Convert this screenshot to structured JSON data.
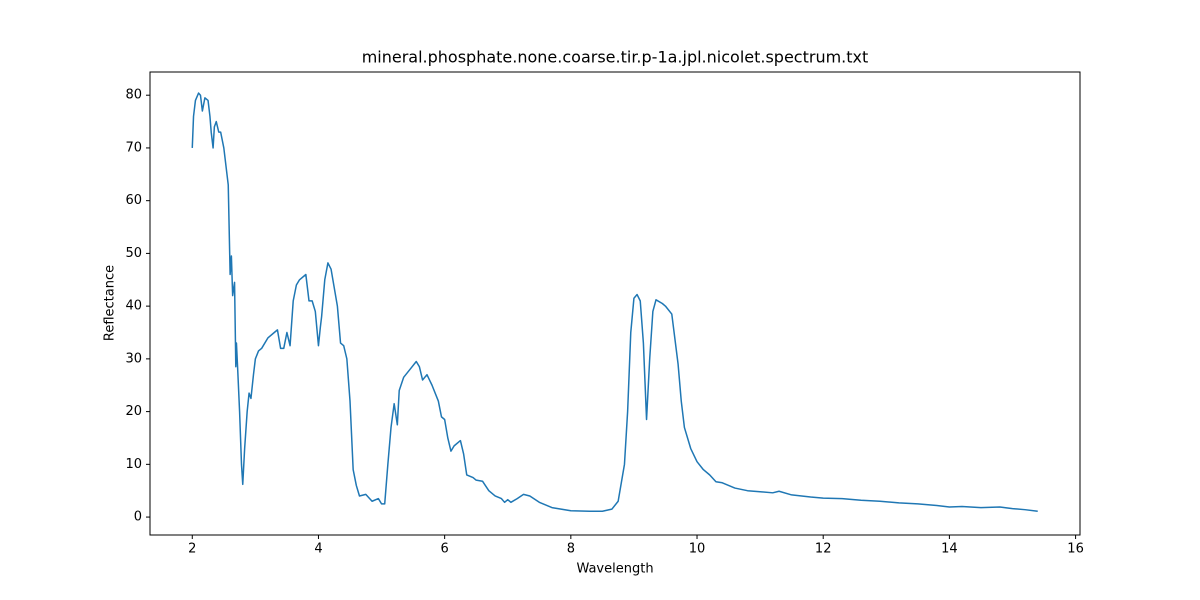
{
  "chart_data": {
    "type": "line",
    "title": "mineral.phosphate.none.coarse.tir.p-1a.jpl.nicolet.spectrum.txt",
    "x_label": "Wavelength",
    "y_label": "Reflectance",
    "xlim": [
      1.33,
      16.07
    ],
    "ylim": [
      -3.4,
      84.4
    ],
    "xticks": [
      2,
      4,
      6,
      8,
      10,
      12,
      14,
      16
    ],
    "yticks": [
      0,
      10,
      20,
      30,
      40,
      50,
      60,
      70,
      80
    ],
    "grid": false,
    "series": [
      {
        "color": "#1f77b4",
        "x": [
          2.0,
          2.02,
          2.05,
          2.1,
          2.13,
          2.16,
          2.2,
          2.25,
          2.28,
          2.3,
          2.33,
          2.35,
          2.38,
          2.42,
          2.45,
          2.5,
          2.55,
          2.57,
          2.6,
          2.62,
          2.64,
          2.67,
          2.69,
          2.7,
          2.72,
          2.75,
          2.78,
          2.8,
          2.83,
          2.87,
          2.9,
          2.93,
          2.97,
          3.0,
          3.05,
          3.1,
          3.2,
          3.3,
          3.35,
          3.4,
          3.45,
          3.5,
          3.55,
          3.6,
          3.65,
          3.7,
          3.8,
          3.85,
          3.9,
          3.95,
          4.0,
          4.03,
          4.05,
          4.1,
          4.15,
          4.2,
          4.3,
          4.35,
          4.4,
          4.45,
          4.5,
          4.55,
          4.6,
          4.65,
          4.75,
          4.85,
          4.95,
          5.0,
          5.05,
          5.1,
          5.15,
          5.2,
          5.25,
          5.28,
          5.35,
          5.45,
          5.55,
          5.6,
          5.65,
          5.72,
          5.8,
          5.9,
          5.95,
          6.0,
          6.05,
          6.1,
          6.15,
          6.25,
          6.3,
          6.35,
          6.45,
          6.5,
          6.6,
          6.7,
          6.8,
          6.9,
          6.95,
          7.0,
          7.05,
          7.15,
          7.25,
          7.35,
          7.5,
          7.7,
          8.0,
          8.3,
          8.5,
          8.65,
          8.75,
          8.85,
          8.9,
          8.95,
          9.0,
          9.05,
          9.1,
          9.15,
          9.2,
          9.25,
          9.3,
          9.35,
          9.45,
          9.5,
          9.6,
          9.7,
          9.75,
          9.8,
          9.9,
          10.0,
          10.1,
          10.2,
          10.3,
          10.4,
          10.6,
          10.8,
          11.0,
          11.2,
          11.3,
          11.5,
          11.8,
          12.0,
          12.3,
          12.6,
          12.9,
          13.2,
          13.5,
          13.8,
          14.0,
          14.2,
          14.5,
          14.8,
          15.0,
          15.2,
          15.4
        ],
        "values": [
          70,
          76,
          79,
          80.4,
          80,
          77,
          79.5,
          79,
          76,
          73,
          70,
          74,
          75,
          73,
          73,
          70,
          65,
          63,
          46,
          49.5,
          42,
          44.5,
          28.5,
          33,
          28,
          20,
          10,
          6.2,
          13,
          20,
          23.5,
          22.5,
          27,
          30,
          31.5,
          32,
          34,
          35,
          35.5,
          32,
          32,
          35,
          32.5,
          41,
          44,
          45,
          46,
          41,
          41,
          39,
          32.5,
          36,
          38,
          45,
          48.2,
          47,
          40,
          33,
          32.5,
          30,
          22,
          9,
          6,
          4,
          4.3,
          3,
          3.5,
          2.5,
          2.5,
          10,
          17,
          21.5,
          17.5,
          24,
          26.5,
          28,
          29.5,
          28.5,
          26,
          27,
          25,
          22,
          19,
          18.5,
          15,
          12.5,
          13.5,
          14.5,
          12,
          8,
          7.5,
          7,
          6.8,
          5,
          4,
          3.5,
          2.8,
          3.3,
          2.8,
          3.5,
          4.3,
          4,
          2.8,
          1.8,
          1.2,
          1.1,
          1.1,
          1.5,
          3,
          10,
          20,
          35,
          41.5,
          42.2,
          41,
          33,
          18.5,
          30,
          39,
          41.2,
          40.5,
          40,
          38.5,
          29,
          22,
          17,
          13,
          10.5,
          9,
          8,
          6.7,
          6.5,
          5.5,
          5,
          4.8,
          4.6,
          4.9,
          4.2,
          3.8,
          3.6,
          3.5,
          3.2,
          3.0,
          2.7,
          2.5,
          2.2,
          1.9,
          2.0,
          1.8,
          1.9,
          1.6,
          1.4,
          1.1
        ]
      }
    ]
  }
}
